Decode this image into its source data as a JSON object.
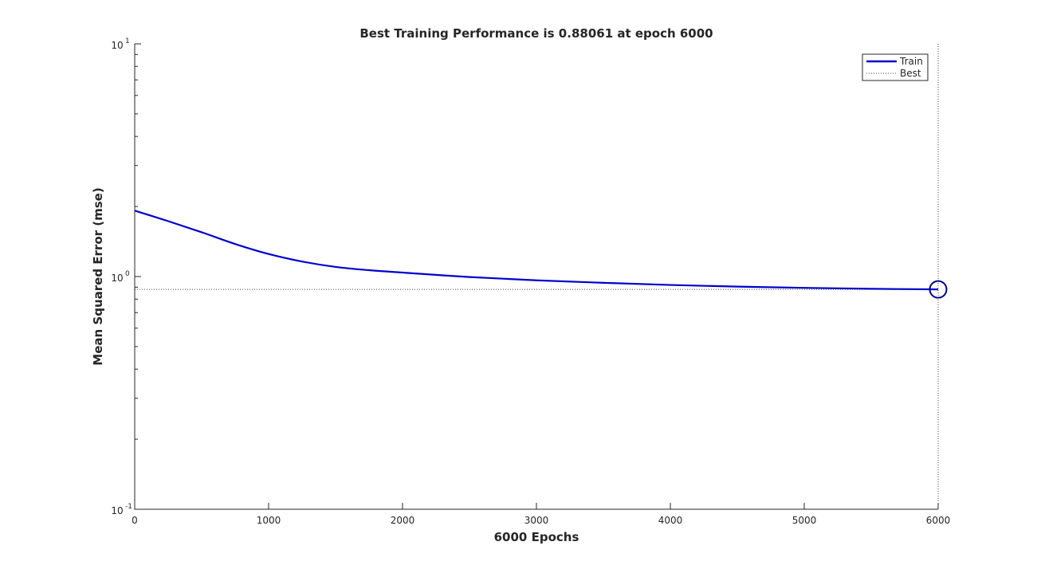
{
  "chart_data": {
    "type": "line",
    "title": "Best Training Performance is 0.88061 at epoch 6000",
    "xlabel": "6000 Epochs",
    "ylabel": "Mean Squared Error  (mse)",
    "xlim": [
      0,
      6000
    ],
    "ylim": [
      0.1,
      10
    ],
    "yscale": "log",
    "grid": false,
    "legend_position": "top-right",
    "x_ticks": [
      {
        "value": 0,
        "label": "0"
      },
      {
        "value": 1000,
        "label": "1000"
      },
      {
        "value": 2000,
        "label": "2000"
      },
      {
        "value": 3000,
        "label": "3000"
      },
      {
        "value": 4000,
        "label": "4000"
      },
      {
        "value": 5000,
        "label": "5000"
      },
      {
        "value": 6000,
        "label": "6000"
      }
    ],
    "y_ticks": [
      {
        "value": 0.1,
        "base": "10",
        "exp": "-1"
      },
      {
        "value": 1,
        "base": "10",
        "exp": "0"
      },
      {
        "value": 10,
        "base": "10",
        "exp": "1"
      }
    ],
    "series": [
      {
        "name": "Train",
        "color": "#0000ff",
        "style": "solid",
        "x": [
          0,
          250,
          500,
          750,
          1000,
          1250,
          1500,
          1750,
          2000,
          2500,
          3000,
          3500,
          4000,
          4500,
          5000,
          5500,
          6000
        ],
        "y": [
          1.92,
          1.73,
          1.55,
          1.38,
          1.25,
          1.16,
          1.1,
          1.065,
          1.04,
          0.995,
          0.963,
          0.94,
          0.92,
          0.905,
          0.894,
          0.886,
          0.8806
        ]
      },
      {
        "name": "Best",
        "color": "#404040",
        "style": "dotted",
        "best_y": 0.88061,
        "best_x": 6000
      }
    ],
    "best_marker": {
      "x": 6000,
      "y": 0.88061,
      "color": "#00008b"
    }
  }
}
